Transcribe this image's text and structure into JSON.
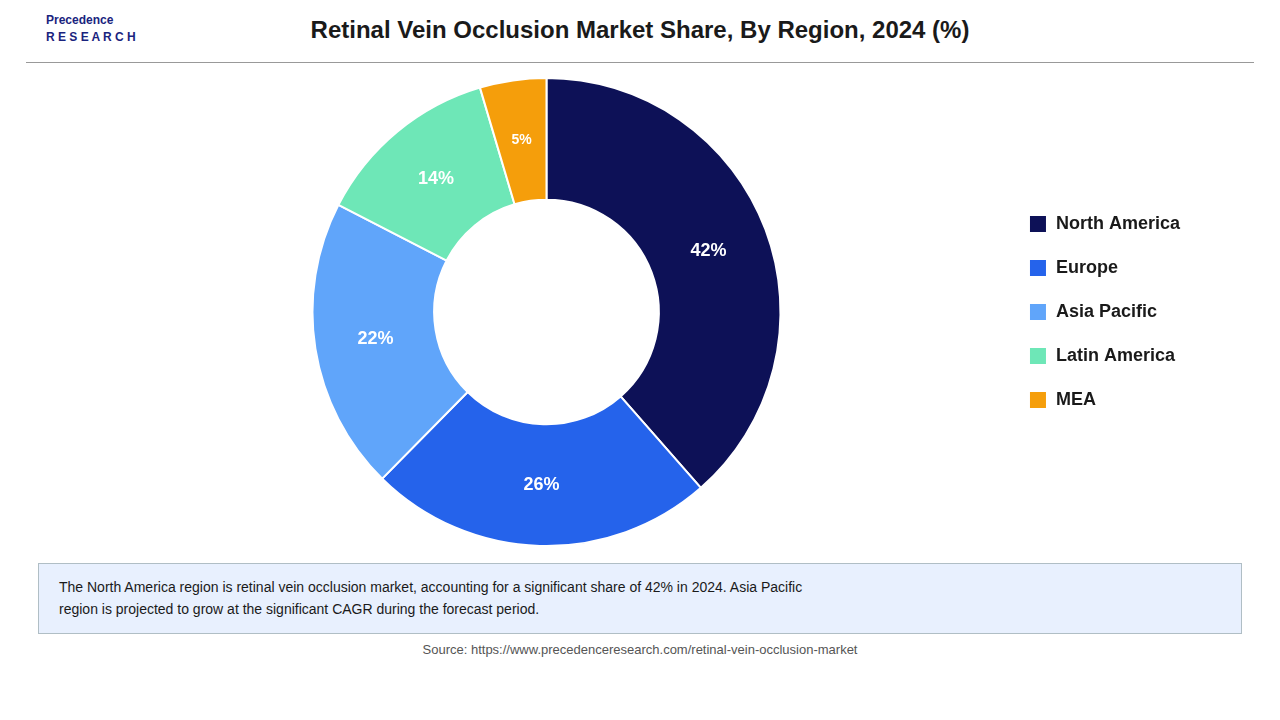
{
  "chart_data": {
    "type": "doughnut",
    "title": "Retinal Vein Occlusion Market Share, By Region, 2024 (%)",
    "categories": [
      "North America",
      "Europe",
      "Asia Pacific",
      "Latin America",
      "MEA"
    ],
    "values": [
      42,
      26,
      22,
      14,
      5
    ],
    "value_labels": [
      "42%",
      "26%",
      "22%",
      "14%",
      "5%"
    ],
    "colors": [
      "#0d1157",
      "#2563eb",
      "#60a5fa",
      "#6ee7b7",
      "#f59e0b"
    ],
    "data_labels": true,
    "legend": "right",
    "annotations": [
      "Precedence\nR E S E A R C H",
      "The North America region is retinal vein occlusion market, accounting for a significant share of 42% in 2024. Asia Pacific\nregion is projected to grow at the significant CAGR during the forecast period.",
      "Source: https://www.precedenceresearch.com/retinal-vein-occlusion-market"
    ]
  }
}
